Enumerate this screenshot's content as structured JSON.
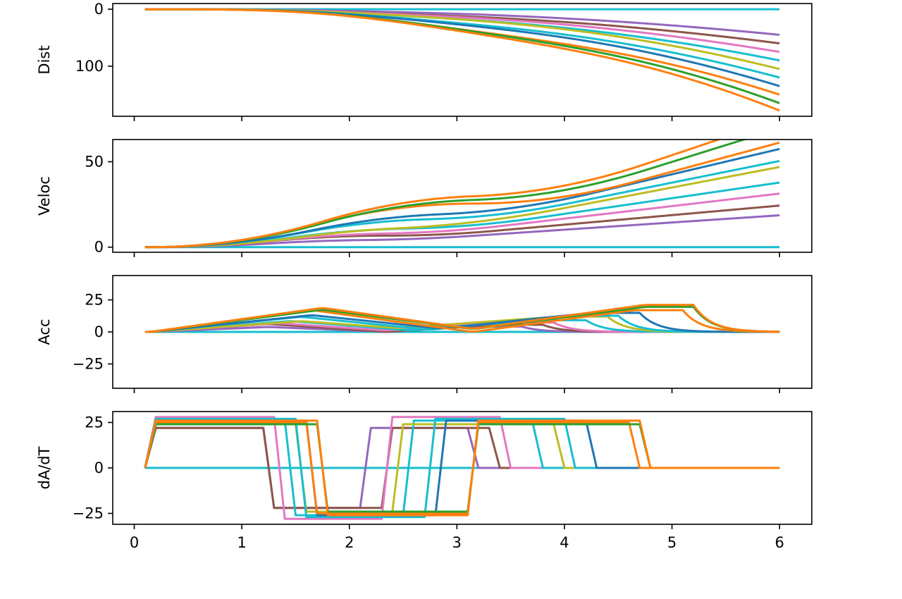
{
  "chart_data": {
    "type": "line",
    "layout": "4 vertically stacked subplots sharing the x-axis",
    "grid": false,
    "legend": "none",
    "xlim": [
      -0.2,
      6.3
    ],
    "xticks": [
      0,
      1,
      2,
      3,
      4,
      5,
      6
    ],
    "palette": [
      "#1f77b4",
      "#ff7f0e",
      "#2ca02c",
      "#d62728",
      "#9467bd",
      "#8c564b",
      "#e377c2",
      "#7f7f7f",
      "#bcbd22",
      "#17becf"
    ],
    "profiles": [
      {
        "color": "#9467bd",
        "dist": 45,
        "t0": 0.1,
        "a": 22,
        "b": 1.1,
        "c": 2.0,
        "d": 1.0
      },
      {
        "color": "#8c564b",
        "dist": 60,
        "t0": 0.1,
        "a": 22,
        "b": 1.1,
        "c": 2.2,
        "d": 1.0
      },
      {
        "color": "#e377c2",
        "dist": 75,
        "t0": 0.1,
        "a": 28,
        "b": 1.2,
        "c": 2.2,
        "d": 1.1
      },
      {
        "color": "#17becf",
        "dist": 90,
        "t0": 0.1,
        "a": 26,
        "b": 1.3,
        "c": 2.4,
        "d": 1.2
      },
      {
        "color": "#bcbd22",
        "dist": 105,
        "t0": 0.1,
        "a": 24,
        "b": 1.4,
        "c": 2.3,
        "d": 1.5
      },
      {
        "color": "#17becf",
        "dist": 120,
        "t0": 0.1,
        "a": 27,
        "b": 1.4,
        "c": 2.6,
        "d": 1.3
      },
      {
        "color": "#1f77b4",
        "dist": 135,
        "t0": 0.1,
        "a": 26,
        "b": 1.5,
        "c": 2.7,
        "d": 1.4
      },
      {
        "color": "#ff7f0e",
        "dist": 150,
        "t0": 0.1,
        "a": 25,
        "b": 1.5,
        "c": 3.0,
        "d": 1.5
      },
      {
        "color": "#2ca02c",
        "dist": 165,
        "t0": 0.1,
        "a": 24,
        "b": 1.6,
        "c": 3.0,
        "d": 1.6
      },
      {
        "color": "#ff7f0e",
        "dist": 178,
        "t0": 0.1,
        "a": 26,
        "b": 1.6,
        "c": 3.0,
        "d": 1.6
      }
    ],
    "subplots": [
      {
        "ylabel": "Dist",
        "quantity": "dist",
        "ylim": [
          188,
          -10
        ],
        "yticks": [
          0,
          100
        ]
      },
      {
        "ylabel": "Veloc",
        "quantity": "veloc",
        "ylim": [
          -3,
          63
        ],
        "yticks": [
          0,
          50
        ]
      },
      {
        "ylabel": "Acc",
        "quantity": "acc",
        "ylim": [
          -44,
          44
        ],
        "yticks": [
          25,
          0,
          -25
        ],
        "ytick_labels": [
          "25",
          "0",
          "−25"
        ]
      },
      {
        "ylabel": "dA/dT",
        "quantity": "jerk",
        "ylim": [
          -31,
          31
        ],
        "yticks": [
          25,
          0,
          -25
        ],
        "ytick_labels": [
          "25",
          "0",
          "−25"
        ]
      }
    ]
  }
}
